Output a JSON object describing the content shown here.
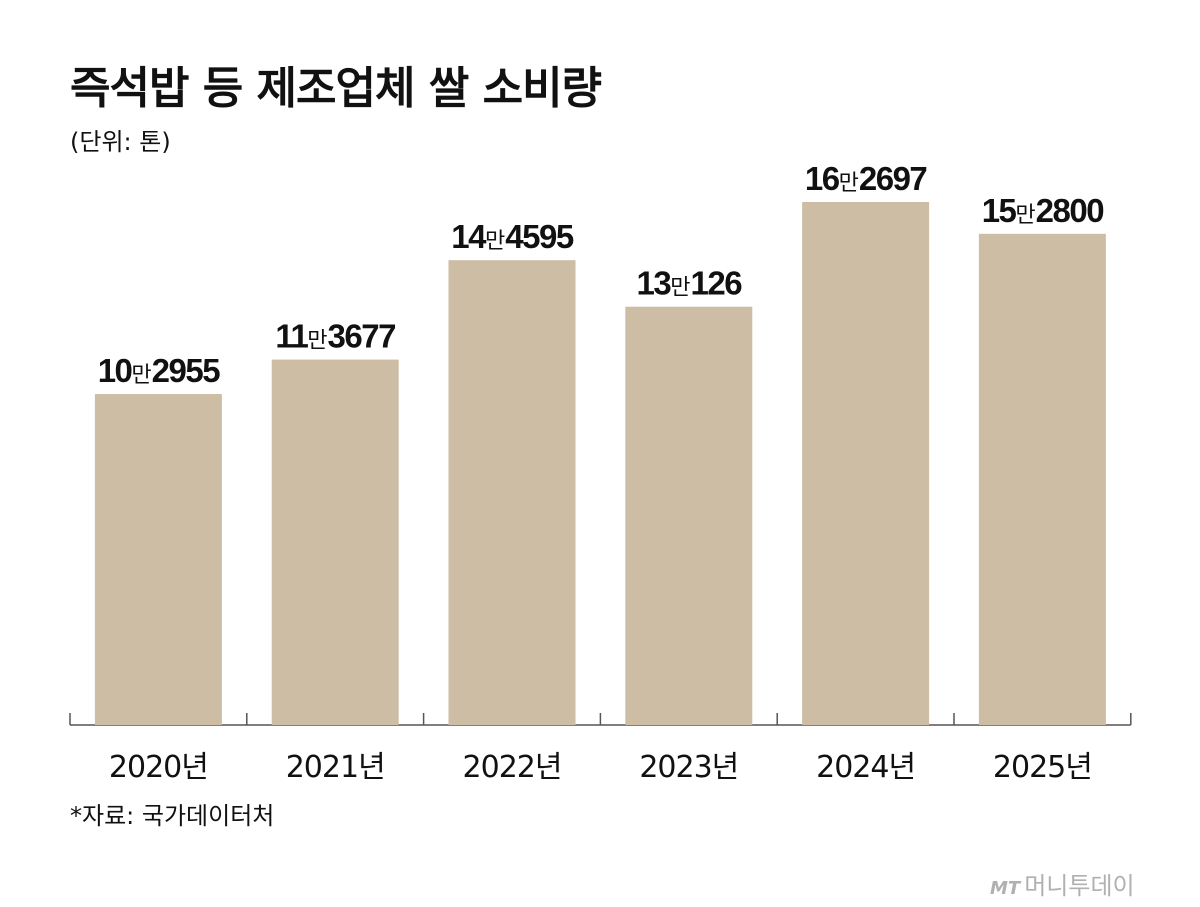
{
  "chart_data": {
    "type": "bar",
    "title": "즉석밥 등 제조업체 쌀 소비량",
    "subtitle": "(단위: 톤)",
    "categories": [
      "2020년",
      "2021년",
      "2022년",
      "2023년",
      "2024년",
      "2025년"
    ],
    "values": [
      102955,
      113677,
      144595,
      130126,
      162697,
      152800
    ],
    "value_labels": [
      {
        "man": "10",
        "unit": "만",
        "rest": "2955"
      },
      {
        "man": "11",
        "unit": "만",
        "rest": "3677"
      },
      {
        "man": "14",
        "unit": "만",
        "rest": "4595"
      },
      {
        "man": "13",
        "unit": "만",
        "rest": "126"
      },
      {
        "man": "16",
        "unit": "만",
        "rest": "2697"
      },
      {
        "man": "15",
        "unit": "만",
        "rest": "2800"
      }
    ],
    "ylim": [
      0,
      162697
    ],
    "grid": false,
    "bar_color": "#cdbda5",
    "axis_color": "#555555"
  },
  "footer": {
    "source": "*자료: 국가데이터처"
  },
  "watermark": {
    "icon": "mt-logo-icon",
    "icon_text": "MT",
    "text": "머니투데이"
  }
}
